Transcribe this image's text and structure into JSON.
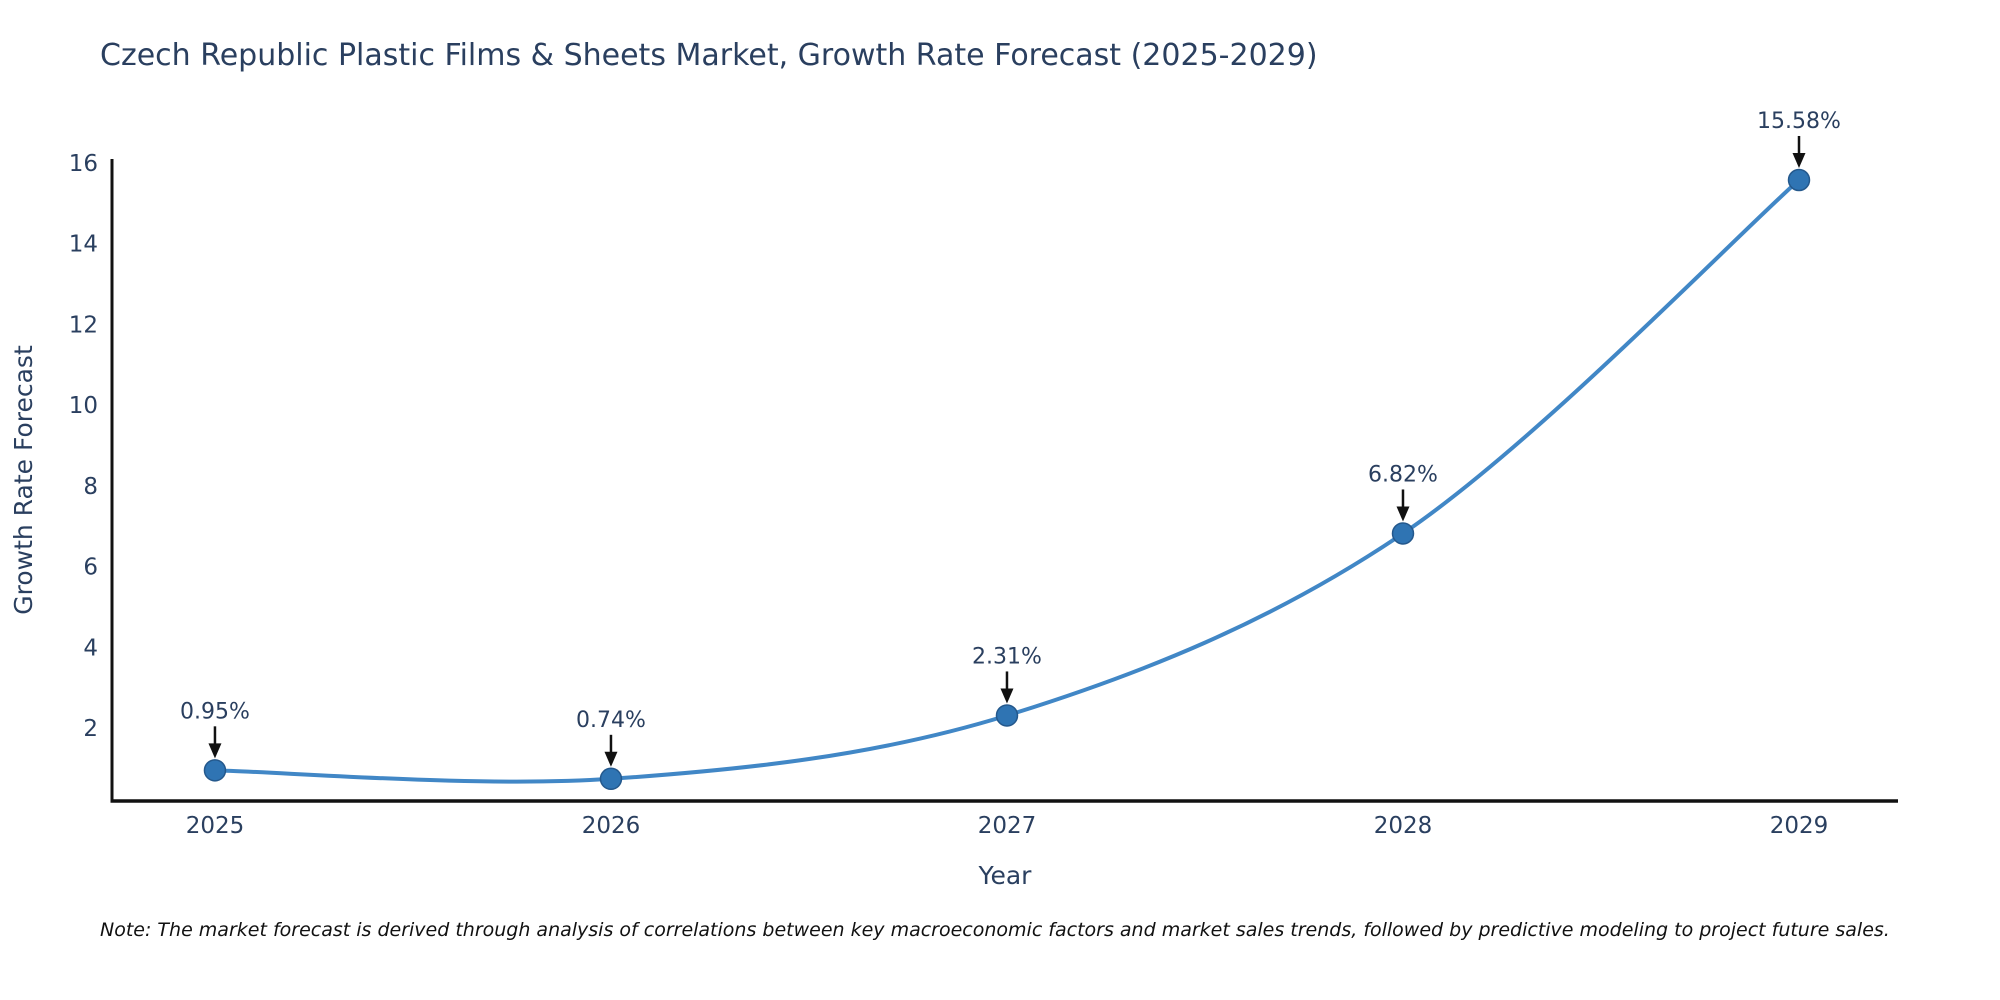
{
  "title": "Czech Republic Plastic Films & Sheets Market, Growth Rate Forecast (2025-2029)",
  "note": "Note: The market forecast is derived through analysis of correlations between key macroeconomic factors and market sales trends, followed by predictive modeling to project future sales.",
  "chart_data": {
    "type": "line",
    "title": "Czech Republic Plastic Films & Sheets Market, Growth Rate Forecast (2025-2029)",
    "xlabel": "Year",
    "ylabel": "Growth Rate Forecast",
    "x": [
      2025,
      2026,
      2027,
      2028,
      2029
    ],
    "values": [
      0.95,
      0.74,
      2.31,
      6.82,
      15.58
    ],
    "annotations": [
      "0.95%",
      "0.74%",
      "2.31%",
      "6.82%",
      "15.58%"
    ],
    "line_shape": "spline",
    "markers": true,
    "grid": false,
    "legend_position": "none",
    "yticks": [
      2,
      4,
      6,
      8,
      10,
      12,
      14,
      16
    ],
    "xticks": [
      2025,
      2026,
      2027,
      2028,
      2029
    ],
    "ylim": [
      0.19,
      16.1
    ],
    "xlim": [
      2024.74,
      2029.25
    ],
    "colors": {
      "line": "#4187c6",
      "marker_fill": "#2f74b3",
      "marker_edge": "#24588c",
      "axis_line": "#111111",
      "tick_text": "#2a3f5f",
      "annotation_text": "#2a3f5f",
      "annotation_arrow": "#111111",
      "title_text": "#2a3f5f",
      "background": "#ffffff"
    }
  }
}
